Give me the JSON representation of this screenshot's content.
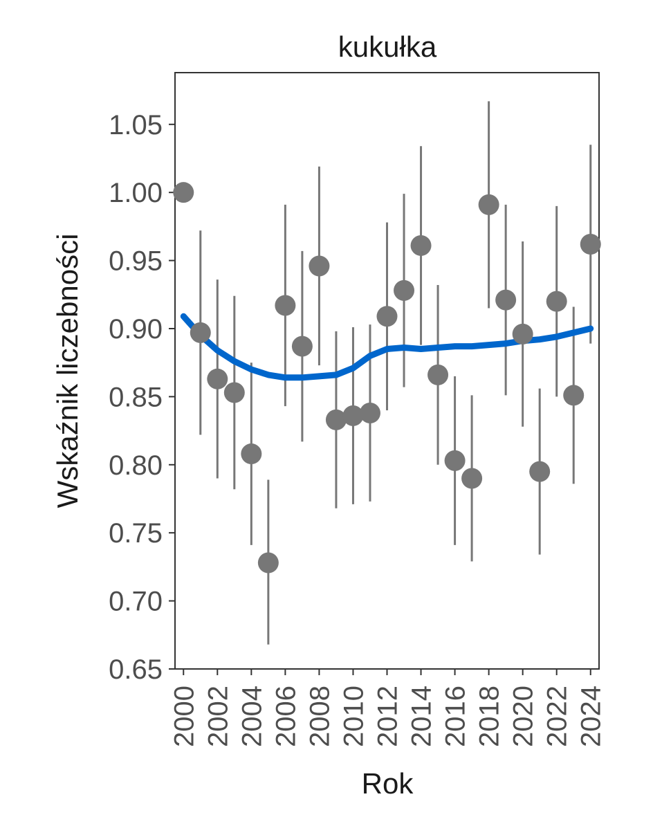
{
  "chart_data": {
    "type": "scatter",
    "title": "kukułka",
    "xlabel": "Rok",
    "ylabel": "Wskaźnik liczebności",
    "xlim": [
      1999.5,
      2024.5
    ],
    "ylim": [
      0.65,
      1.088
    ],
    "x_ticks": [
      2000,
      2002,
      2004,
      2006,
      2008,
      2010,
      2012,
      2014,
      2016,
      2018,
      2020,
      2022,
      2024
    ],
    "y_ticks": [
      0.65,
      0.7,
      0.75,
      0.8,
      0.85,
      0.9,
      0.95,
      1.0,
      1.05
    ],
    "y_tick_labels": [
      "0.65",
      "0.70",
      "0.75",
      "0.80",
      "0.85",
      "0.90",
      "0.95",
      "1.00",
      "1.05"
    ],
    "grid": false,
    "colors": {
      "points": "#777777",
      "error_bars": "#777777",
      "trend": "#0066cc",
      "frame": "#333333"
    },
    "points": [
      {
        "x": 2000,
        "y": 1.0,
        "lo": null,
        "hi": null
      },
      {
        "x": 2001,
        "y": 0.897,
        "lo": 0.822,
        "hi": 0.972
      },
      {
        "x": 2002,
        "y": 0.863,
        "lo": 0.79,
        "hi": 0.936
      },
      {
        "x": 2003,
        "y": 0.853,
        "lo": 0.782,
        "hi": 0.924
      },
      {
        "x": 2004,
        "y": 0.808,
        "lo": 0.741,
        "hi": 0.875
      },
      {
        "x": 2005,
        "y": 0.728,
        "lo": 0.668,
        "hi": 0.789
      },
      {
        "x": 2006,
        "y": 0.917,
        "lo": 0.843,
        "hi": 0.991
      },
      {
        "x": 2007,
        "y": 0.887,
        "lo": 0.817,
        "hi": 0.957
      },
      {
        "x": 2008,
        "y": 0.946,
        "lo": 0.873,
        "hi": 1.019
      },
      {
        "x": 2009,
        "y": 0.833,
        "lo": 0.768,
        "hi": 0.898
      },
      {
        "x": 2010,
        "y": 0.836,
        "lo": 0.771,
        "hi": 0.901
      },
      {
        "x": 2011,
        "y": 0.838,
        "lo": 0.773,
        "hi": 0.903
      },
      {
        "x": 2012,
        "y": 0.909,
        "lo": 0.84,
        "hi": 0.978
      },
      {
        "x": 2013,
        "y": 0.928,
        "lo": 0.857,
        "hi": 0.999
      },
      {
        "x": 2014,
        "y": 0.961,
        "lo": 0.888,
        "hi": 1.034
      },
      {
        "x": 2015,
        "y": 0.866,
        "lo": 0.8,
        "hi": 0.932
      },
      {
        "x": 2016,
        "y": 0.803,
        "lo": 0.741,
        "hi": 0.865
      },
      {
        "x": 2017,
        "y": 0.79,
        "lo": 0.729,
        "hi": 0.851
      },
      {
        "x": 2018,
        "y": 0.991,
        "lo": 0.915,
        "hi": 1.067
      },
      {
        "x": 2019,
        "y": 0.921,
        "lo": 0.851,
        "hi": 0.991
      },
      {
        "x": 2020,
        "y": 0.896,
        "lo": 0.828,
        "hi": 0.964
      },
      {
        "x": 2021,
        "y": 0.795,
        "lo": 0.734,
        "hi": 0.856
      },
      {
        "x": 2022,
        "y": 0.92,
        "lo": 0.85,
        "hi": 0.99
      },
      {
        "x": 2023,
        "y": 0.851,
        "lo": 0.786,
        "hi": 0.916
      },
      {
        "x": 2024,
        "y": 0.962,
        "lo": 0.889,
        "hi": 1.035
      }
    ],
    "trend": {
      "x": [
        2000,
        2001,
        2002,
        2003,
        2004,
        2005,
        2006,
        2007,
        2008,
        2009,
        2010,
        2011,
        2012,
        2013,
        2014,
        2015,
        2016,
        2017,
        2018,
        2019,
        2020,
        2021,
        2022,
        2023,
        2024
      ],
      "y": [
        0.909,
        0.895,
        0.884,
        0.876,
        0.87,
        0.866,
        0.864,
        0.864,
        0.865,
        0.866,
        0.871,
        0.88,
        0.885,
        0.886,
        0.885,
        0.886,
        0.887,
        0.887,
        0.888,
        0.889,
        0.891,
        0.892,
        0.894,
        0.897,
        0.9
      ]
    }
  }
}
